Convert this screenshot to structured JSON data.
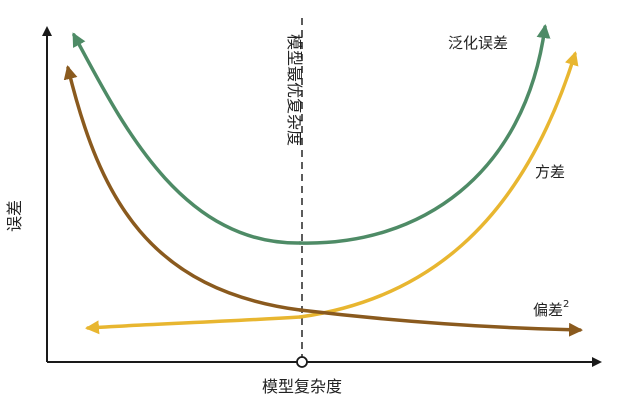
{
  "labels": {
    "x_axis": "模型复杂度",
    "y_axis": "误差",
    "optimal_line": "模型最优复杂度",
    "generalization_error": "泛化误差",
    "variance": "方差",
    "bias_squared": "偏差",
    "bias_squared_exponent": "2"
  },
  "colors": {
    "axes": "#1a1a1a",
    "optimal_line": "#333333",
    "generalization_error": "#4e8b66",
    "variance": "#e8b630",
    "bias_squared": "#8a5a1e"
  }
}
